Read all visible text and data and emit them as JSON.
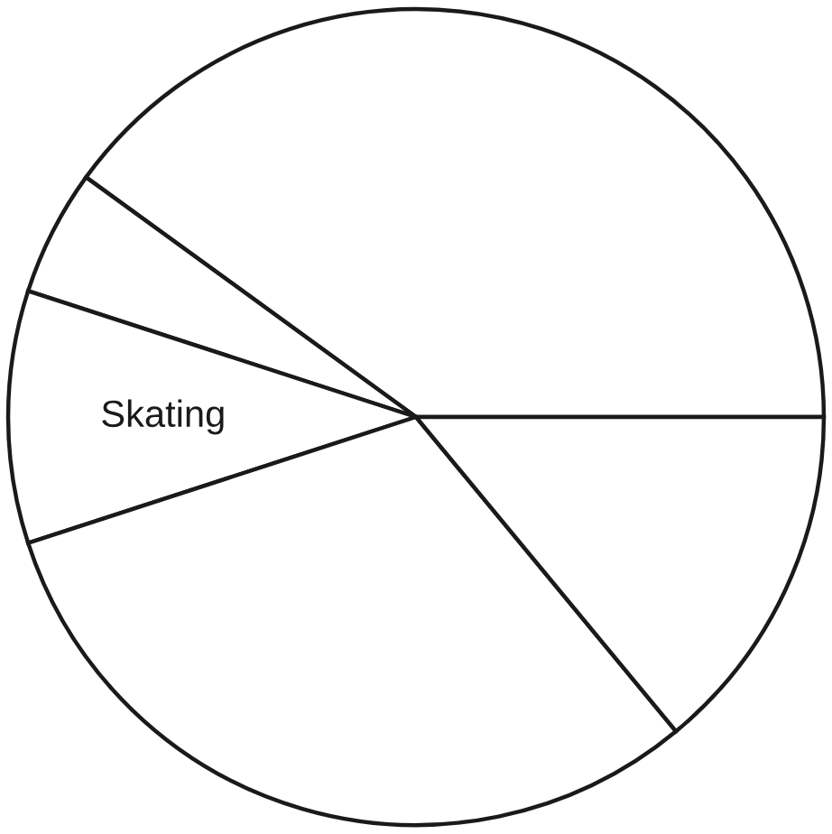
{
  "chart_data": {
    "type": "pie",
    "categories": [
      null,
      null,
      "Skating",
      null,
      null
    ],
    "values": [
      40,
      5,
      10,
      31,
      14
    ],
    "colors": [
      "#ffffff",
      "#ffffff",
      "#ffffff",
      "#ffffff",
      "#ffffff"
    ]
  }
}
